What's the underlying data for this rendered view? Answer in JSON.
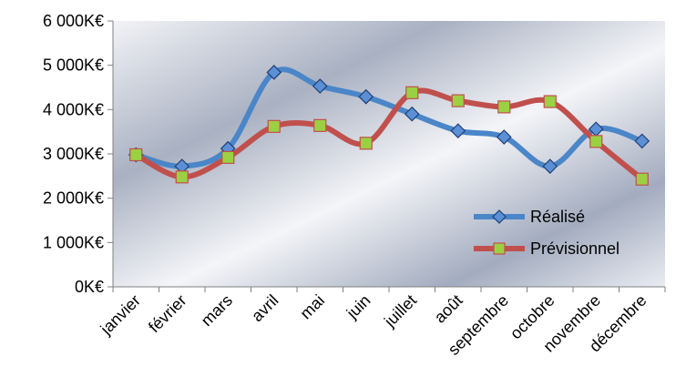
{
  "chart_data": {
    "type": "line",
    "title": "",
    "xlabel": "",
    "ylabel": "",
    "categories": [
      "janvier",
      "février",
      "mars",
      "avril",
      "mai",
      "juin",
      "juillet",
      "août",
      "septembre",
      "octobre",
      "novembre",
      "décembre"
    ],
    "ylim": [
      0,
      6000
    ],
    "yticks": [
      0,
      1000,
      2000,
      3000,
      4000,
      5000,
      6000
    ],
    "ytick_labels": [
      "0K€",
      "1 000K€",
      "2 000K€",
      "3 000K€",
      "4 000K€",
      "5 000K€",
      "6 000K€"
    ],
    "grid": false,
    "smooth": true,
    "legend_position": "right",
    "series": [
      {
        "name": "Réalisé",
        "color": "#4a86c8",
        "marker": "diamond",
        "marker_fill": "#5b8fd6",
        "marker_stroke": "#1f3f73",
        "values": [
          2980,
          2720,
          3120,
          4840,
          4530,
          4290,
          3900,
          3520,
          3380,
          2720,
          3560,
          3290
        ]
      },
      {
        "name": "Prévisionnel",
        "color": "#c0504d",
        "marker": "square",
        "marker_fill": "#9bd043",
        "marker_stroke": "#c0504d",
        "values": [
          2980,
          2480,
          2920,
          3620,
          3640,
          3240,
          4380,
          4200,
          4060,
          4180,
          3280,
          2430
        ]
      }
    ]
  }
}
